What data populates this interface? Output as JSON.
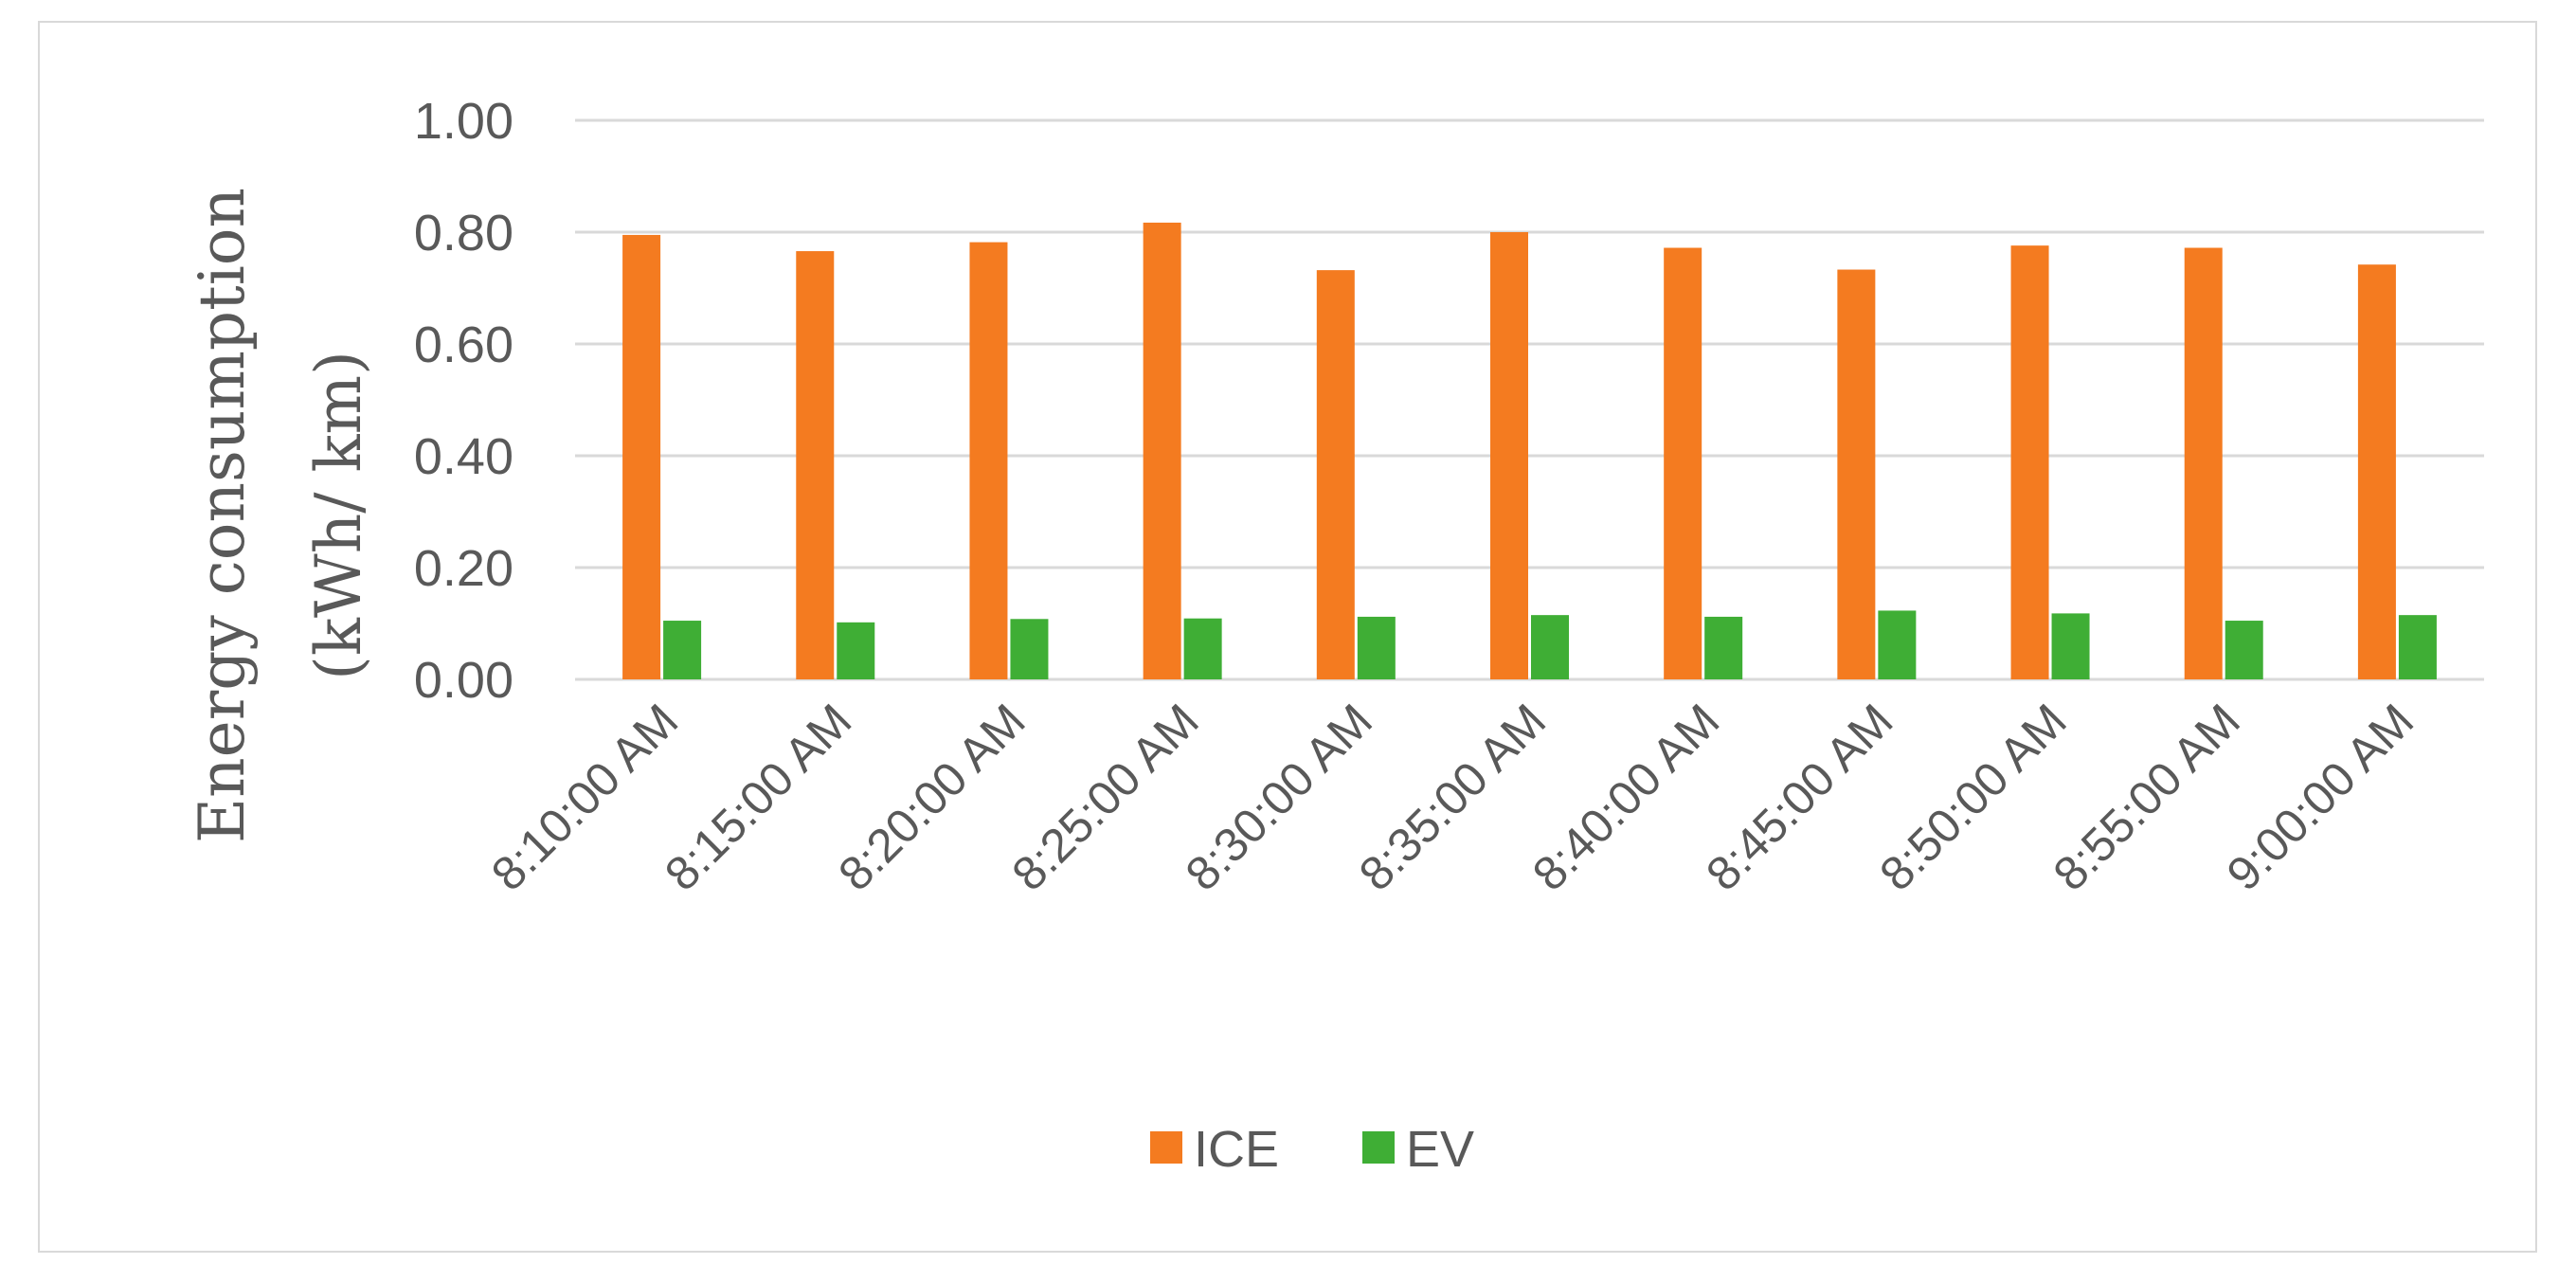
{
  "chart_data": {
    "type": "bar",
    "title": "",
    "xlabel": "",
    "ylabel": [
      "Energy consumption",
      "(kWh/ km)"
    ],
    "ylim": [
      0,
      1.0
    ],
    "yticks": [
      "0.00",
      "0.20",
      "0.40",
      "0.60",
      "0.80",
      "1.00"
    ],
    "categories": [
      "8:10:00 AM",
      "8:15:00 AM",
      "8:20:00 AM",
      "8:25:00 AM",
      "8:30:00 AM",
      "8:35:00 AM",
      "8:40:00 AM",
      "8:45:00 AM",
      "8:50:00 AM",
      "8:55:00 AM",
      "9:00:00 AM"
    ],
    "series": [
      {
        "name": "ICE",
        "color": "#F47B20",
        "values": [
          0.795,
          0.766,
          0.782,
          0.817,
          0.732,
          0.8,
          0.772,
          0.733,
          0.776,
          0.772,
          0.742
        ]
      },
      {
        "name": "EV",
        "color": "#3FAE35",
        "values": [
          0.105,
          0.102,
          0.108,
          0.109,
          0.112,
          0.115,
          0.112,
          0.123,
          0.118,
          0.105,
          0.115
        ]
      }
    ],
    "legend": "bottom",
    "grid": true
  }
}
